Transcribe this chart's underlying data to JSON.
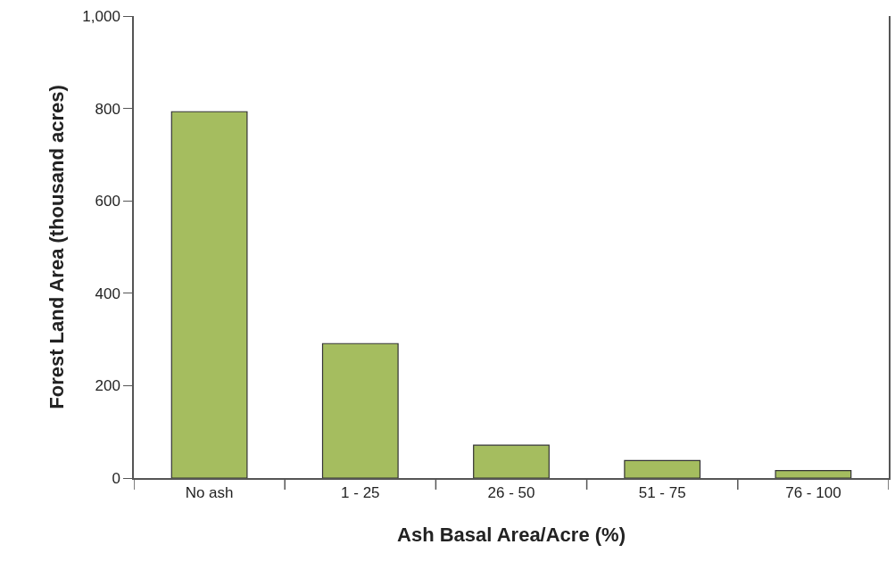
{
  "chart_data": {
    "type": "bar",
    "xlabel": "Ash Basal Area/Acre (%)",
    "ylabel": "Forest Land Area (thousand acres)",
    "categories": [
      "No ash",
      "1 - 25",
      "26 - 50",
      "51 - 75",
      "76 - 100"
    ],
    "values": [
      793,
      291,
      71,
      38,
      16
    ],
    "color": "#a5bd5f",
    "ylim": [
      0,
      1000
    ],
    "yticks": [
      0,
      200,
      400,
      600,
      800,
      {
        "value": 1000,
        "label": "1,000"
      }
    ]
  }
}
